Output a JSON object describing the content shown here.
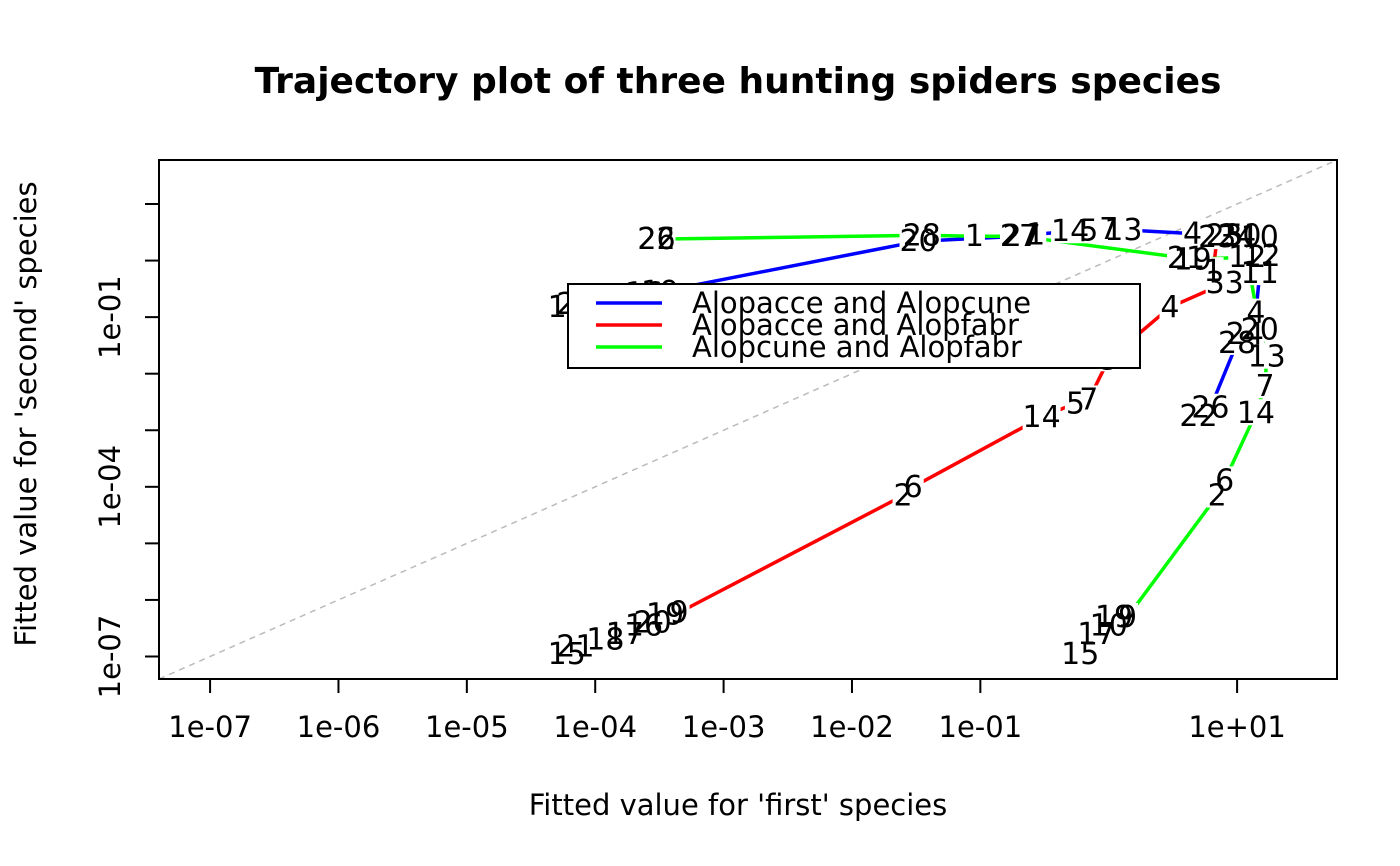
{
  "chart_data": {
    "type": "line",
    "title": "Trajectory plot of three hunting spiders species",
    "xlabel": "Fitted value for 'first' species",
    "ylabel": "Fitted value for 'second' species",
    "xscale": "log",
    "yscale": "log",
    "xlim": [
      4e-08,
      60
    ],
    "ylim": [
      4e-08,
      60
    ],
    "reference_line": "y = x (dashed, grey)",
    "legend_placement": "center-right",
    "x_ticks": [
      1e-07,
      1e-06,
      1e-05,
      0.0001,
      0.001,
      0.01,
      0.1,
      10.0
    ],
    "x_tick_labels": [
      "1e-07",
      "1e-06",
      "1e-05",
      "1e-04",
      "1e-03",
      "1e-02",
      "1e-01",
      "1e+01"
    ],
    "y_ticks": [
      1e-07,
      0.0001,
      0.1
    ],
    "y_tick_labels": [
      "1e-07",
      "1e-04",
      "1e-01"
    ],
    "y_minor_ticks": [
      1e-06,
      1e-05,
      0.001,
      0.01,
      1,
      10
    ],
    "series": [
      {
        "name": "Alopacce and Alopcune",
        "color": "#0000ff",
        "points": [
          {
            "label": "15",
            "x": 6e-05,
            "y": 0.15
          },
          {
            "label": "21",
            "x": 7e-05,
            "y": 0.17
          },
          {
            "label": "18",
            "x": 0.00012,
            "y": 0.2
          },
          {
            "label": "17",
            "x": 0.00018,
            "y": 0.23
          },
          {
            "label": "16",
            "x": 0.00024,
            "y": 0.26
          },
          {
            "label": "19",
            "x": 0.00032,
            "y": 0.28
          },
          {
            "label": "20",
            "x": 0.033,
            "y": 2.2
          },
          {
            "label": "27",
            "x": 0.21,
            "y": 2.7
          },
          {
            "label": "1",
            "x": 0.27,
            "y": 2.9
          },
          {
            "label": "14",
            "x": 0.5,
            "y": 3.3
          },
          {
            "label": "5",
            "x": 0.7,
            "y": 3.4
          },
          {
            "label": "7",
            "x": 1.0,
            "y": 3.6
          },
          {
            "label": "13",
            "x": 1.3,
            "y": 3.5
          },
          {
            "label": "4",
            "x": 4.5,
            "y": 3.0
          },
          {
            "label": "25",
            "x": 8.0,
            "y": 2.8
          },
          {
            "label": "30",
            "x": 11.0,
            "y": 2.8
          },
          {
            "label": "10",
            "x": 15.0,
            "y": 2.6
          },
          {
            "label": "12",
            "x": 15.5,
            "y": 1.2
          },
          {
            "label": "11",
            "x": 15.0,
            "y": 0.6
          },
          {
            "label": "4",
            "x": 14.0,
            "y": 0.12
          },
          {
            "label": "24",
            "x": 11.5,
            "y": 0.05
          },
          {
            "label": "28",
            "x": 10.0,
            "y": 0.035
          },
          {
            "label": "26",
            "x": 6.2,
            "y": 0.0025
          },
          {
            "label": "22",
            "x": 5.0,
            "y": 0.0018
          }
        ]
      },
      {
        "name": "Alopacce and Alopfabr",
        "color": "#ff0000",
        "points": [
          {
            "label": "15",
            "x": 6e-05,
            "y": 1.1e-07
          },
          {
            "label": "21",
            "x": 7e-05,
            "y": 1.5e-07
          },
          {
            "label": "18",
            "x": 0.00012,
            "y": 2e-07
          },
          {
            "label": "17",
            "x": 0.00017,
            "y": 2.5e-07
          },
          {
            "label": "16",
            "x": 0.00024,
            "y": 3.5e-07
          },
          {
            "label": "20",
            "x": 0.00028,
            "y": 4e-07
          },
          {
            "label": "19",
            "x": 0.00035,
            "y": 5.5e-07
          },
          {
            "label": "9",
            "x": 0.00045,
            "y": 6e-07
          },
          {
            "label": "2",
            "x": 0.025,
            "y": 7e-05
          },
          {
            "label": "6",
            "x": 0.03,
            "y": 0.0001
          },
          {
            "label": "14",
            "x": 0.3,
            "y": 0.0017
          },
          {
            "label": "5",
            "x": 0.55,
            "y": 0.003
          },
          {
            "label": "7",
            "x": 0.7,
            "y": 0.0035
          },
          {
            "label": "3",
            "x": 1.0,
            "y": 0.018
          },
          {
            "label": "4",
            "x": 3.0,
            "y": 0.15
          },
          {
            "label": "33",
            "x": 8.0,
            "y": 0.4
          },
          {
            "label": "1",
            "x": 6.5,
            "y": 0.65
          },
          {
            "label": "23",
            "x": 7.0,
            "y": 2.6
          },
          {
            "label": "24",
            "x": 10.0,
            "y": 2.8
          }
        ]
      },
      {
        "name": "Alopcune and Alopfabr",
        "color": "#00ff00",
        "points": [
          {
            "label": "22",
            "x": 0.0003,
            "y": 2.4
          },
          {
            "label": "26",
            "x": 0.0003,
            "y": 2.4
          },
          {
            "label": "28",
            "x": 0.035,
            "y": 2.8
          },
          {
            "label": "1",
            "x": 0.09,
            "y": 2.7
          },
          {
            "label": "27",
            "x": 0.2,
            "y": 2.7
          },
          {
            "label": "21",
            "x": 4.0,
            "y": 1.1
          },
          {
            "label": "19",
            "x": 4.5,
            "y": 1.05
          },
          {
            "label": "12",
            "x": 12.0,
            "y": 1.15
          },
          {
            "label": "20",
            "x": 15.0,
            "y": 0.06
          },
          {
            "label": "13",
            "x": 17.0,
            "y": 0.02
          },
          {
            "label": "7",
            "x": 16.5,
            "y": 0.006
          },
          {
            "label": "14",
            "x": 14.0,
            "y": 0.002
          },
          {
            "label": "6",
            "x": 8.0,
            "y": 0.00013
          },
          {
            "label": "2",
            "x": 7.0,
            "y": 7e-05
          },
          {
            "label": "9",
            "x": 1.4,
            "y": 5e-07
          },
          {
            "label": "19",
            "x": 1.1,
            "y": 5e-07
          },
          {
            "label": "10",
            "x": 1.0,
            "y": 3.5e-07
          },
          {
            "label": "17",
            "x": 0.8,
            "y": 2.5e-07
          },
          {
            "label": "15",
            "x": 0.6,
            "y": 1.1e-07
          }
        ]
      }
    ]
  }
}
